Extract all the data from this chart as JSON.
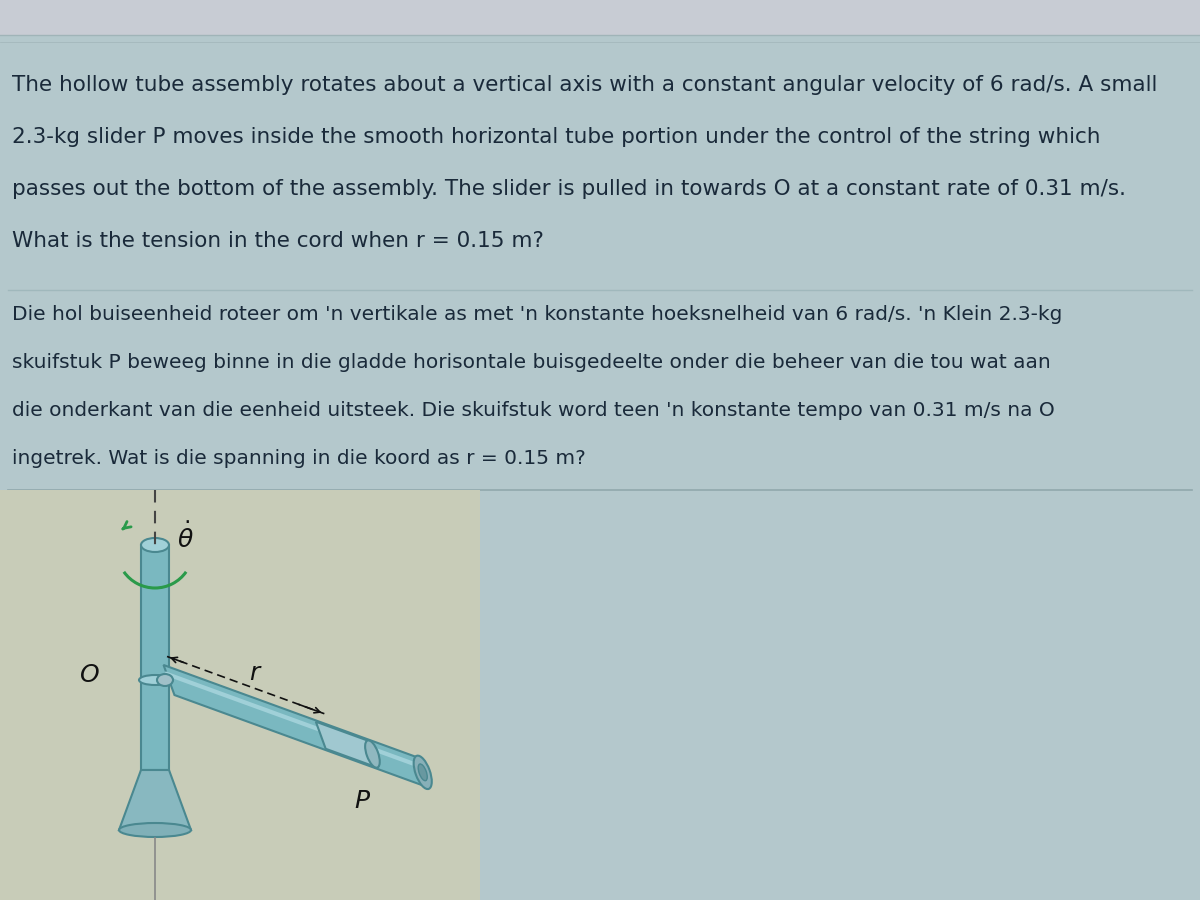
{
  "bg_color": "#b0c8cc",
  "bg_top_stripe": "#c8d4d8",
  "text_color": "#1a2a3a",
  "title_en": "The hollow tube assembly rotates about a vertical axis with a constant angular velocity of 6 rad/s. A small\n2.3-kg slider P moves inside the smooth horizontal tube portion under the control of the string which\npasses out the bottom of the assembly. The slider is pulled in towards O at a constant rate of 0.31 m/s.\nWhat is the tension in the cord when r = 0.15 m?",
  "title_af": "Die hol buiseenheid roteer om 'n vertikale as met 'n konstante hoeksnelheid van 6 rad/s. 'n Klein 2.3-kg\nskuifstuk P beweeg binne in die gladde horisontale buisgedeelte onder die beheer van die tou wat aan\ndie onderkant van die eenheid uitsteek. Die skuifstuk word teen 'n konstante tempo van 0.31 m/s na O\ningetrek. Wat is die spanning in die koord as r = 0.15 m?",
  "tube_color": "#7ab8c0",
  "tube_highlight": "#a0d0d8",
  "tube_shadow": "#5898a0",
  "tube_edge_color": "#4a8890",
  "arrow_color": "#cc1166",
  "arc_color": "#2a9a4a",
  "label_color": "#111111",
  "diagram_bg": "#c8d0c8",
  "fig_width": 12.0,
  "fig_height": 9.0,
  "dpi": 100
}
